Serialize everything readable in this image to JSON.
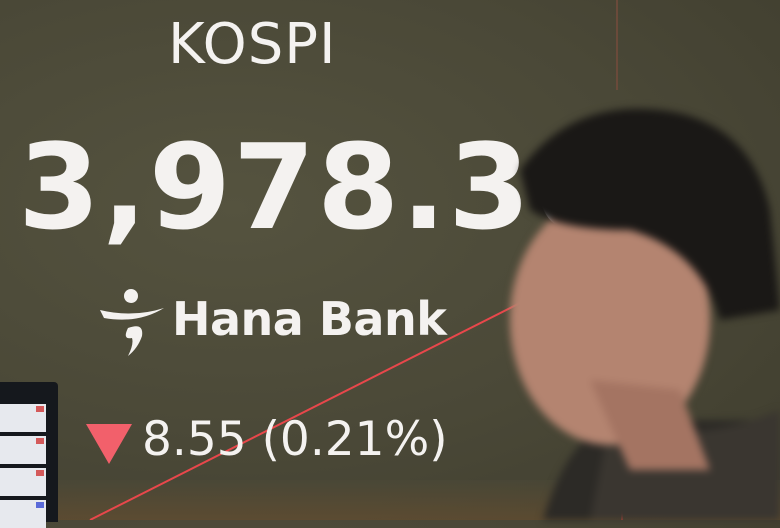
{
  "display": {
    "index_name": "KOSPI",
    "index_value": "3,978.36",
    "brand": "Hana Bank",
    "change_direction": "down",
    "change_text": "8.55 (0.21%)",
    "colors": {
      "background": "#4a4837",
      "down": "#f2606b",
      "text": "#f4f2f0"
    }
  },
  "icons": {
    "logo": "hana-bank-logo",
    "arrow": "triangle-down-icon"
  }
}
